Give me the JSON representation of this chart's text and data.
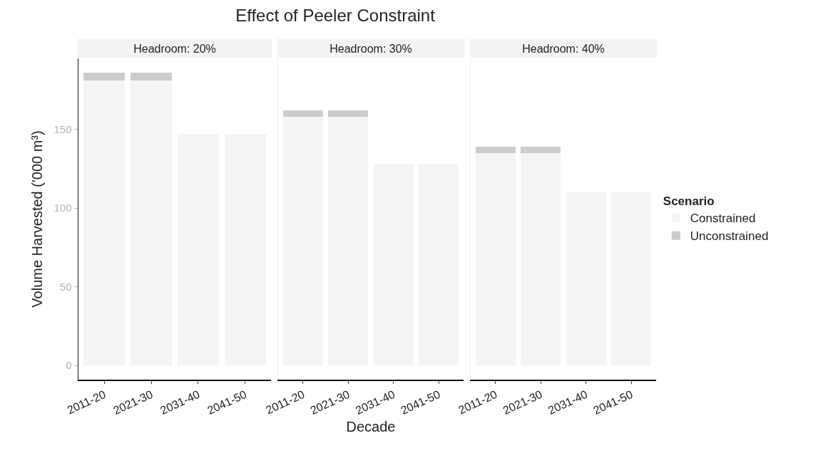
{
  "chart_data": [
    {
      "type": "bar",
      "subtitle": "Headroom: 20%",
      "ylabel": "Volume Harvested ('000 m³)",
      "categories": [
        "2011-20",
        "2021-30",
        "2031-40",
        "2041-50"
      ],
      "stacked": true,
      "grid": false,
      "ylim": [
        -9,
        195
      ],
      "yticks": [
        0,
        50,
        100,
        150
      ],
      "series": [
        {
          "color": "#f4f4f4",
          "values": [
            181,
            181,
            147,
            147
          ]
        },
        {
          "color": "#cccccc",
          "values": [
            5,
            5,
            null,
            null
          ]
        }
      ]
    },
    {
      "type": "bar",
      "title": "Effect of Peeler Constraint",
      "subtitle": "Headroom: 30%",
      "xlabel": "Decade",
      "categories": [
        "2011-20",
        "2021-30",
        "2031-40",
        "2041-50"
      ],
      "stacked": true,
      "grid": false,
      "ylim": [
        -9,
        195
      ],
      "yticks": [
        0,
        50,
        100,
        150
      ],
      "tick_labels": "x",
      "series": [
        {
          "color": "#f4f4f4",
          "values": [
            158,
            158,
            128,
            128
          ]
        },
        {
          "color": "#cccccc",
          "values": [
            4,
            4,
            null,
            null
          ]
        }
      ]
    },
    {
      "type": "bar",
      "subtitle": "Headroom: 40%",
      "legend_title": "Scenario",
      "legend": "right",
      "categories": [
        "2011-20",
        "2021-30",
        "2031-40",
        "2041-50"
      ],
      "stacked": true,
      "grid": false,
      "ylim": [
        -9,
        195
      ],
      "yticks": [
        0,
        50,
        100,
        150
      ],
      "tick_labels": "x",
      "series": [
        {
          "name": "Constrained",
          "color": "#f4f4f4",
          "values": [
            135,
            135,
            110,
            110
          ]
        },
        {
          "name": "Unconstrained",
          "color": "#cccccc",
          "values": [
            4,
            4,
            null,
            null
          ]
        }
      ]
    }
  ]
}
